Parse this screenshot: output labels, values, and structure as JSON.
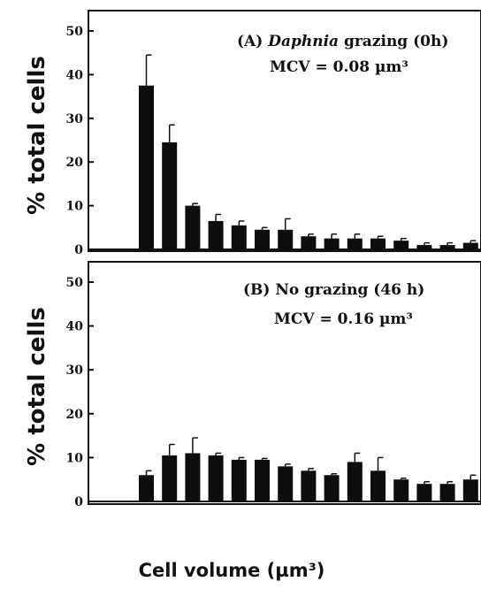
{
  "figure": {
    "y_label": "% total cells",
    "x_label": "Cell volume (µm³)"
  },
  "chart_data": [
    {
      "type": "bar",
      "panel": "A",
      "annotation_prefix": "(A) ",
      "annotation_italic": "Daphnia",
      "annotation_suffix": " grazing (0h)",
      "annotation_line2": "MCV = 0.08 µm³",
      "ylabel": "% total cells",
      "xlabel": "Cell volume (µm³)",
      "yticks": [
        "0",
        "10",
        "20",
        "30",
        "40",
        "50"
      ],
      "ylim": [
        0,
        52
      ],
      "values": [
        0,
        0,
        37.5,
        24.5,
        10.0,
        6.5,
        5.5,
        4.5,
        4.5,
        3.0,
        2.5,
        2.5,
        2.5,
        2.0,
        1.0,
        1.0,
        1.5
      ],
      "errors": [
        0,
        0,
        7.0,
        4.0,
        0.5,
        1.5,
        1.0,
        0.5,
        2.5,
        0.5,
        1.0,
        1.0,
        0.5,
        0.5,
        0.5,
        0.5,
        0.5
      ],
      "grid": false
    },
    {
      "type": "bar",
      "panel": "B",
      "annotation_line1": "(B) No grazing (46 h)",
      "annotation_line2": "MCV = 0.16 µm³",
      "ylabel": "% total cells",
      "xlabel": "Cell volume (µm³)",
      "yticks": [
        "0",
        "10",
        "20",
        "30",
        "40",
        "50"
      ],
      "ylim": [
        0,
        52
      ],
      "values": [
        0,
        0,
        6.0,
        10.5,
        11.0,
        10.5,
        9.5,
        9.5,
        8.0,
        7.0,
        6.0,
        9.0,
        7.0,
        5.0,
        4.0,
        4.0,
        5.0
      ],
      "errors": [
        0,
        0,
        1.0,
        2.5,
        3.5,
        0.5,
        0.5,
        0.3,
        0.5,
        0.5,
        0.3,
        2.0,
        3.0,
        0.3,
        0.5,
        0.5,
        1.0
      ],
      "grid": false
    }
  ]
}
